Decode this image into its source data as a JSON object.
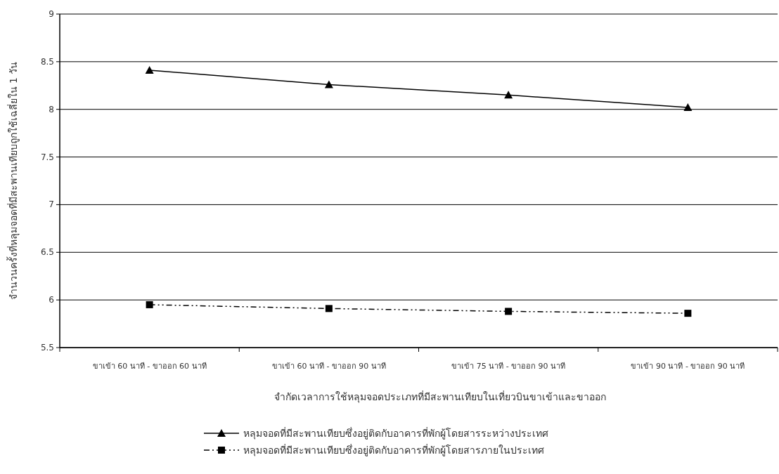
{
  "chart_data": {
    "type": "line",
    "xlabel": "จำกัดเวลาการใช้หลุมจอดประเภทที่มีสะพานเทียบในเที่ยวบินขาเข้าและขาออก",
    "ylabel": "จำนวนครั้งที่หลุมจอดที่มีสะพานเทียบถูกใช้เฉลี่ยใน 1 วัน",
    "categories": [
      "ขาเข้า 60 นาที - ขาออก 60 นาที",
      "ขาเข้า 60 นาที - ขาออก 90 นาที",
      "ขาเข้า 75 นาที - ขาออก 90 นาที",
      "ขาเข้า 90 นาที - ขาออก 90 นาที"
    ],
    "series": [
      {
        "name": "หลุมจอดที่มีสะพานเทียบซึ่งอยู่ติดกับอาคารที่พักผู้โดยสารระหว่างประเทศ",
        "color": "#000000",
        "marker": "triangle",
        "line_style": "solid",
        "values": [
          8.41,
          8.26,
          8.15,
          8.02
        ]
      },
      {
        "name": "หลุมจอดที่มีสะพานเทียบซึ่งอยู่ติดกับอาคารที่พักผู้โดยสารภายในประเทศ",
        "color": "#000000",
        "marker": "square",
        "line_style": "dashed",
        "values": [
          5.95,
          5.91,
          5.88,
          5.86
        ]
      }
    ],
    "ylim": [
      5.5,
      9
    ],
    "yticks": [
      5.5,
      6,
      6.5,
      7,
      7.5,
      8,
      8.5,
      9
    ],
    "grid": "y",
    "legend": "bottom"
  }
}
